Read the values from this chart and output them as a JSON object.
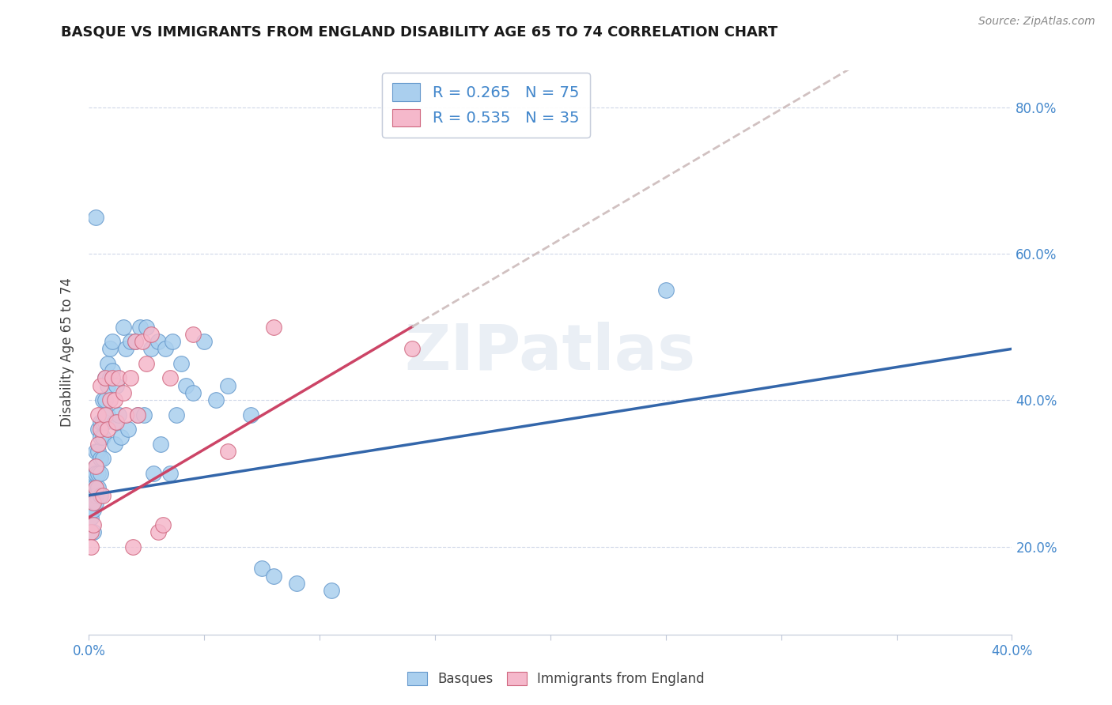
{
  "title": "BASQUE VS IMMIGRANTS FROM ENGLAND DISABILITY AGE 65 TO 74 CORRELATION CHART",
  "source": "Source: ZipAtlas.com",
  "ylabel": "Disability Age 65 to 74",
  "xlim": [
    0.0,
    0.4
  ],
  "ylim": [
    0.08,
    0.85
  ],
  "xticks": [
    0.0,
    0.05,
    0.1,
    0.15,
    0.2,
    0.25,
    0.3,
    0.35,
    0.4
  ],
  "yticks": [
    0.2,
    0.4,
    0.6,
    0.8
  ],
  "watermark": "ZIPatlas",
  "basque_color": "#aacfee",
  "england_color": "#f5b8cb",
  "basque_edge": "#6699cc",
  "england_edge": "#d06880",
  "trend_basque_color": "#3366aa",
  "trend_england_color": "#cc4466",
  "trend_ext_color": "#ccbbbb",
  "legend_label_blue": "R = 0.265   N = 75",
  "legend_label_pink": "R = 0.535   N = 35",
  "basque_x": [
    0.001,
    0.001,
    0.001,
    0.001,
    0.002,
    0.002,
    0.002,
    0.002,
    0.002,
    0.002,
    0.002,
    0.003,
    0.003,
    0.003,
    0.003,
    0.003,
    0.003,
    0.003,
    0.004,
    0.004,
    0.004,
    0.004,
    0.005,
    0.005,
    0.005,
    0.005,
    0.005,
    0.006,
    0.006,
    0.006,
    0.006,
    0.007,
    0.007,
    0.007,
    0.008,
    0.008,
    0.008,
    0.009,
    0.009,
    0.01,
    0.01,
    0.011,
    0.011,
    0.012,
    0.013,
    0.014,
    0.015,
    0.016,
    0.017,
    0.018,
    0.02,
    0.021,
    0.022,
    0.024,
    0.025,
    0.027,
    0.028,
    0.03,
    0.031,
    0.033,
    0.035,
    0.036,
    0.038,
    0.04,
    0.042,
    0.045,
    0.05,
    0.055,
    0.06,
    0.07,
    0.075,
    0.08,
    0.09,
    0.105,
    0.25
  ],
  "basque_y": [
    0.26,
    0.25,
    0.27,
    0.24,
    0.29,
    0.28,
    0.26,
    0.27,
    0.3,
    0.25,
    0.22,
    0.33,
    0.31,
    0.28,
    0.27,
    0.26,
    0.3,
    0.65,
    0.36,
    0.33,
    0.3,
    0.28,
    0.37,
    0.35,
    0.32,
    0.3,
    0.27,
    0.4,
    0.37,
    0.35,
    0.32,
    0.43,
    0.4,
    0.37,
    0.45,
    0.42,
    0.38,
    0.47,
    0.43,
    0.48,
    0.44,
    0.37,
    0.34,
    0.42,
    0.38,
    0.35,
    0.5,
    0.47,
    0.36,
    0.48,
    0.48,
    0.38,
    0.5,
    0.38,
    0.5,
    0.47,
    0.3,
    0.48,
    0.34,
    0.47,
    0.3,
    0.48,
    0.38,
    0.45,
    0.42,
    0.41,
    0.48,
    0.4,
    0.42,
    0.38,
    0.17,
    0.16,
    0.15,
    0.14,
    0.55
  ],
  "england_x": [
    0.001,
    0.001,
    0.002,
    0.002,
    0.003,
    0.003,
    0.004,
    0.004,
    0.005,
    0.005,
    0.006,
    0.007,
    0.007,
    0.008,
    0.009,
    0.01,
    0.011,
    0.012,
    0.013,
    0.015,
    0.016,
    0.018,
    0.019,
    0.02,
    0.021,
    0.023,
    0.025,
    0.027,
    0.03,
    0.032,
    0.035,
    0.045,
    0.06,
    0.08,
    0.14
  ],
  "england_y": [
    0.22,
    0.2,
    0.26,
    0.23,
    0.31,
    0.28,
    0.38,
    0.34,
    0.42,
    0.36,
    0.27,
    0.43,
    0.38,
    0.36,
    0.4,
    0.43,
    0.4,
    0.37,
    0.43,
    0.41,
    0.38,
    0.43,
    0.2,
    0.48,
    0.38,
    0.48,
    0.45,
    0.49,
    0.22,
    0.23,
    0.43,
    0.49,
    0.33,
    0.5,
    0.47
  ]
}
